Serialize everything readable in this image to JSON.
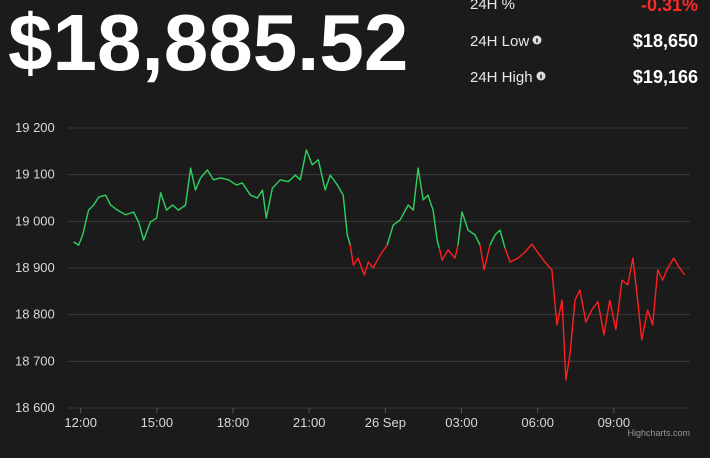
{
  "header": {
    "price": "$18,885.52",
    "stats": [
      {
        "label": "24H %",
        "value": "-0.31%"
      },
      {
        "label": "24H Low",
        "value": "$18,650"
      },
      {
        "label": "24H High",
        "value": "$19,166"
      }
    ]
  },
  "chart_data": {
    "type": "line",
    "credits": "Highcharts.com",
    "x": [
      11.72,
      11.92,
      12.08,
      12.31,
      12.51,
      12.71,
      12.98,
      13.18,
      13.45,
      13.77,
      14.08,
      14.28,
      14.48,
      14.75,
      14.99,
      15.15,
      15.38,
      15.62,
      15.85,
      16.13,
      16.33,
      16.52,
      16.72,
      16.99,
      17.23,
      17.51,
      17.82,
      18.13,
      18.37,
      18.69,
      18.96,
      19.16,
      19.31,
      19.55,
      19.86,
      20.18,
      20.45,
      20.65,
      20.89,
      21.12,
      21.36,
      21.63,
      21.83,
      22.11,
      22.34,
      22.5,
      22.62,
      22.74,
      22.93,
      23.17,
      23.33,
      23.52,
      23.8,
      24.07,
      24.31,
      24.58,
      24.9,
      25.1,
      25.29,
      25.49,
      25.68,
      25.88,
      26.04,
      26.12,
      26.24,
      26.47,
      26.74,
      26.86,
      27.02,
      27.26,
      27.53,
      27.73,
      27.89,
      28.12,
      28.32,
      28.52,
      28.71,
      28.91,
      29.22,
      29.5,
      29.77,
      29.93,
      30.28,
      30.56,
      30.76,
      30.96,
      31.11,
      31.27,
      31.47,
      31.66,
      31.9,
      32.13,
      32.37,
      32.61,
      32.84,
      33.08,
      33.32,
      33.55,
      33.75,
      33.94,
      34.1,
      34.33,
      34.53,
      34.73,
      34.92,
      35.12,
      35.36,
      35.59,
      35.79
    ],
    "series": [
      {
        "color": "#2fd160",
        "values": [
          18956,
          18949,
          18971,
          19024,
          19035,
          19052,
          19056,
          19035,
          19024,
          19014,
          19020,
          18999,
          18960,
          18999,
          19007,
          19061,
          19024,
          19035,
          19024,
          19035,
          19114,
          19067,
          19093,
          19110,
          19089,
          19093,
          19089,
          19078,
          19082,
          19056,
          19050,
          19067,
          19007,
          19071,
          19089,
          19085,
          19099,
          19089,
          19153,
          19121,
          19132,
          19067,
          19099,
          19078,
          19056,
          18971,
          18949,
          null,
          null,
          null,
          null,
          null,
          null,
          18949,
          18992,
          19003,
          19035,
          19024,
          19114,
          19046,
          19056,
          19024,
          18960,
          18943,
          null,
          null,
          null,
          18949,
          19020,
          18981,
          18971,
          18949,
          null,
          18949,
          18971,
          18981,
          18943,
          null,
          null,
          null,
          null,
          null,
          null,
          null,
          null,
          null,
          null,
          null,
          null,
          null,
          null,
          null,
          null,
          null,
          null,
          null,
          null,
          null,
          null,
          null,
          null,
          null,
          null,
          null,
          null,
          null,
          null,
          null,
          null
        ]
      },
      {
        "color": "#ff1f1f",
        "values": [
          null,
          null,
          null,
          null,
          null,
          null,
          null,
          null,
          null,
          null,
          null,
          null,
          null,
          null,
          null,
          null,
          null,
          null,
          null,
          null,
          null,
          null,
          null,
          null,
          null,
          null,
          null,
          null,
          null,
          null,
          null,
          null,
          null,
          null,
          null,
          null,
          null,
          null,
          null,
          null,
          null,
          null,
          null,
          null,
          null,
          null,
          18949,
          18906,
          18921,
          18885,
          18913,
          18900,
          18928,
          18949,
          null,
          null,
          null,
          null,
          null,
          null,
          null,
          null,
          null,
          18943,
          18917,
          18939,
          18921,
          18949,
          null,
          null,
          null,
          18949,
          18896,
          18949,
          null,
          null,
          18943,
          18913,
          18921,
          18934,
          18951,
          18939,
          18913,
          18896,
          18778,
          18831,
          18660,
          18714,
          18831,
          18853,
          18784,
          18810,
          18828,
          18757,
          18831,
          18768,
          18874,
          18864,
          18921,
          18831,
          18746,
          18810,
          18778,
          18896,
          18874,
          18900,
          18921,
          18900,
          18885
        ]
      }
    ],
    "xlim": [
      11.5,
      36
    ],
    "xticks": [
      {
        "value": 12,
        "label": "12:00"
      },
      {
        "value": 15,
        "label": "15:00"
      },
      {
        "value": 18,
        "label": "18:00"
      },
      {
        "value": 21,
        "label": "21:00"
      },
      {
        "value": 24,
        "label": "26 Sep"
      },
      {
        "value": 27,
        "label": "03:00"
      },
      {
        "value": 30,
        "label": "06:00"
      },
      {
        "value": 33,
        "label": "09:00"
      }
    ],
    "ylim": [
      18600,
      19200
    ],
    "yticks": [
      {
        "value": 18600,
        "label": "18 600"
      },
      {
        "value": 18700,
        "label": "18 700"
      },
      {
        "value": 18800,
        "label": "18 800"
      },
      {
        "value": 18900,
        "label": "18 900"
      },
      {
        "value": 19000,
        "label": "19 000"
      },
      {
        "value": 19100,
        "label": "19 100"
      },
      {
        "value": 19200,
        "label": "19 200"
      }
    ],
    "grid": true
  }
}
